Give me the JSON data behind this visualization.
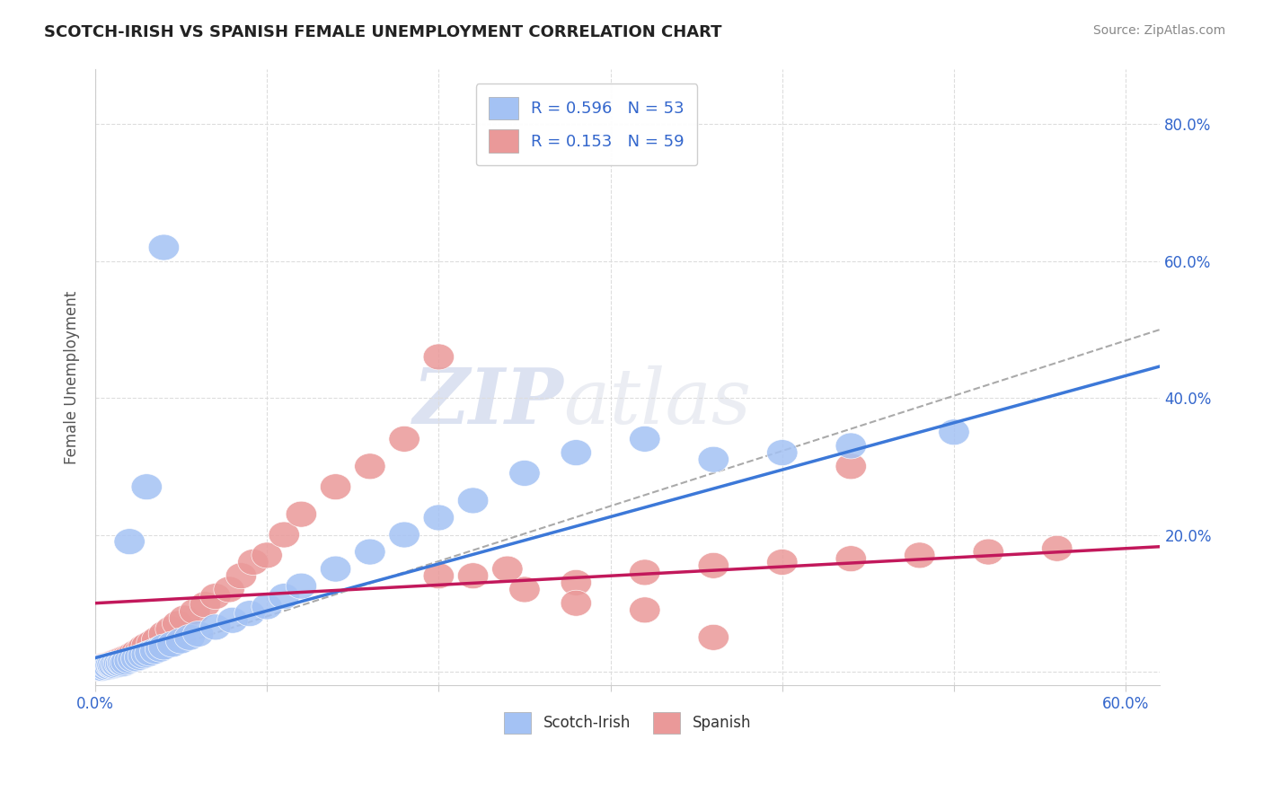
{
  "title": "SCOTCH-IRISH VS SPANISH FEMALE UNEMPLOYMENT CORRELATION CHART",
  "source": "Source: ZipAtlas.com",
  "ylabel": "Female Unemployment",
  "xlim": [
    0.0,
    0.62
  ],
  "ylim": [
    -0.02,
    0.88
  ],
  "scotch_irish_color": "#a4c2f4",
  "scotch_irish_edge_color": "#6d9eeb",
  "spanish_color": "#ea9999",
  "spanish_edge_color": "#e06666",
  "scotch_irish_line_color": "#3c78d8",
  "spanish_line_color": "#c2185b",
  "dashed_line_color": "#aaaaaa",
  "grid_color": "#dddddd",
  "R1": 0.596,
  "N1": 53,
  "R2": 0.153,
  "N2": 59,
  "watermark_zip": "ZIP",
  "watermark_atlas": "atlas",
  "scotch_irish_x": [
    0.002,
    0.003,
    0.004,
    0.005,
    0.006,
    0.007,
    0.008,
    0.009,
    0.01,
    0.01,
    0.011,
    0.012,
    0.013,
    0.014,
    0.015,
    0.016,
    0.017,
    0.018,
    0.02,
    0.022,
    0.024,
    0.026,
    0.028,
    0.03,
    0.032,
    0.035,
    0.038,
    0.04,
    0.045,
    0.05,
    0.055,
    0.06,
    0.07,
    0.08,
    0.09,
    0.1,
    0.11,
    0.12,
    0.14,
    0.16,
    0.18,
    0.2,
    0.22,
    0.25,
    0.28,
    0.32,
    0.36,
    0.4,
    0.44,
    0.5,
    0.02,
    0.03,
    0.04
  ],
  "scotch_irish_y": [
    0.005,
    0.006,
    0.005,
    0.007,
    0.006,
    0.008,
    0.007,
    0.009,
    0.008,
    0.01,
    0.009,
    0.011,
    0.01,
    0.012,
    0.011,
    0.013,
    0.012,
    0.014,
    0.016,
    0.018,
    0.019,
    0.021,
    0.023,
    0.025,
    0.027,
    0.03,
    0.033,
    0.036,
    0.04,
    0.045,
    0.05,
    0.055,
    0.065,
    0.075,
    0.085,
    0.095,
    0.11,
    0.125,
    0.15,
    0.175,
    0.2,
    0.225,
    0.25,
    0.29,
    0.32,
    0.34,
    0.31,
    0.32,
    0.33,
    0.35,
    0.19,
    0.27,
    0.62
  ],
  "spanish_x": [
    0.002,
    0.003,
    0.004,
    0.005,
    0.006,
    0.007,
    0.008,
    0.009,
    0.01,
    0.011,
    0.012,
    0.013,
    0.014,
    0.015,
    0.016,
    0.017,
    0.018,
    0.019,
    0.02,
    0.022,
    0.024,
    0.026,
    0.028,
    0.03,
    0.033,
    0.036,
    0.04,
    0.044,
    0.048,
    0.052,
    0.058,
    0.064,
    0.07,
    0.078,
    0.085,
    0.092,
    0.1,
    0.11,
    0.12,
    0.14,
    0.16,
    0.18,
    0.2,
    0.22,
    0.25,
    0.28,
    0.32,
    0.36,
    0.4,
    0.44,
    0.48,
    0.52,
    0.56,
    0.28,
    0.32,
    0.36,
    0.2,
    0.24,
    0.44
  ],
  "spanish_y": [
    0.005,
    0.006,
    0.008,
    0.007,
    0.009,
    0.008,
    0.01,
    0.009,
    0.012,
    0.011,
    0.014,
    0.013,
    0.016,
    0.015,
    0.018,
    0.017,
    0.02,
    0.019,
    0.022,
    0.025,
    0.028,
    0.03,
    0.035,
    0.038,
    0.042,
    0.047,
    0.055,
    0.062,
    0.07,
    0.078,
    0.088,
    0.098,
    0.11,
    0.12,
    0.14,
    0.16,
    0.17,
    0.2,
    0.23,
    0.27,
    0.3,
    0.34,
    0.46,
    0.14,
    0.12,
    0.13,
    0.145,
    0.155,
    0.16,
    0.165,
    0.17,
    0.175,
    0.18,
    0.1,
    0.09,
    0.05,
    0.14,
    0.15,
    0.3
  ]
}
